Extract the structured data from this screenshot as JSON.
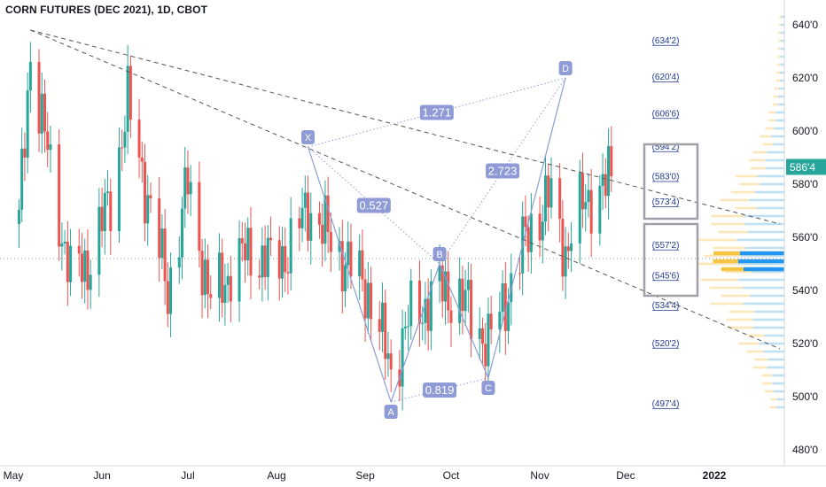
{
  "header": {
    "title": "CORN FUTURES (DEC 2021), 1D, CBOT"
  },
  "colors": {
    "up": "#26a69a",
    "down": "#ef5350",
    "pattern": "#8e9bd6",
    "label_bg": "#8e9bd6",
    "trend": "#555555",
    "vp_light": "#fbe7b8",
    "vp_blue": "#bfe0f3",
    "vp_poc_orange": "#f5c443",
    "vp_poc_blue": "#2196f3",
    "price_tag": "#26a69a"
  },
  "chart_data": {
    "type": "candlestick",
    "title": "CORN FUTURES (DEC 2021), 1D, CBOT",
    "y_axis": {
      "ticks": [
        "480'0",
        "500'0",
        "520'0",
        "540'0",
        "560'0",
        "580'0",
        "600'0",
        "620'0",
        "640'0"
      ],
      "range": [
        473,
        645
      ]
    },
    "x_axis": {
      "ticks": [
        "May",
        "Jun",
        "Jul",
        "Aug",
        "Sep",
        "Oct",
        "Nov",
        "Dec",
        "2022"
      ]
    },
    "last_price": "586'4",
    "fib_levels": [
      "634'2",
      "620'4",
      "606'6",
      "594'2",
      "583'0",
      "573'4",
      "557'2",
      "545'6",
      "534'4",
      "520'2",
      "497'4"
    ],
    "harmonic": {
      "points": [
        {
          "label": "X",
          "x": "2021-08-12",
          "y": 594
        },
        {
          "label": "A",
          "x": "2021-09-10",
          "y": 498
        },
        {
          "label": "B",
          "x": "2021-09-27",
          "y": 550
        },
        {
          "label": "C",
          "x": "2021-10-14",
          "y": 507
        },
        {
          "label": "D",
          "x": "2021-11-10",
          "y": 620
        }
      ],
      "ratios": [
        "1.271",
        "0.527",
        "2.723",
        "0.819"
      ]
    },
    "trendlines": [
      {
        "from": {
          "x": "2021-05-07",
          "y": 638
        },
        "to": {
          "x": "2022-01-24",
          "y": 565
        }
      },
      {
        "from": {
          "x": "2021-05-07",
          "y": 638
        },
        "to": {
          "x": "2022-01-24",
          "y": 518
        }
      }
    ],
    "candles_keypoints": [
      {
        "date": "2021-05-03",
        "close": 565
      },
      {
        "date": "2021-05-07",
        "close": 630
      },
      {
        "date": "2021-05-14",
        "close": 585
      },
      {
        "date": "2021-05-21",
        "close": 545
      },
      {
        "date": "2021-05-28",
        "close": 552
      },
      {
        "date": "2021-06-04",
        "close": 575
      },
      {
        "date": "2021-06-10",
        "close": 610
      },
      {
        "date": "2021-06-17",
        "close": 575
      },
      {
        "date": "2021-06-24",
        "close": 540
      },
      {
        "date": "2021-07-01",
        "close": 580
      },
      {
        "date": "2021-07-09",
        "close": 535
      },
      {
        "date": "2021-07-16",
        "close": 548
      },
      {
        "date": "2021-07-23",
        "close": 555
      },
      {
        "date": "2021-07-30",
        "close": 550
      },
      {
        "date": "2021-08-06",
        "close": 556
      },
      {
        "date": "2021-08-12",
        "close": 572
      },
      {
        "date": "2021-08-19",
        "close": 560
      },
      {
        "date": "2021-08-26",
        "close": 550
      },
      {
        "date": "2021-09-02",
        "close": 540
      },
      {
        "date": "2021-09-10",
        "close": 510
      },
      {
        "date": "2021-09-17",
        "close": 530
      },
      {
        "date": "2021-09-27",
        "close": 540
      },
      {
        "date": "2021-10-04",
        "close": 538
      },
      {
        "date": "2021-10-14",
        "close": 520
      },
      {
        "date": "2021-10-21",
        "close": 540
      },
      {
        "date": "2021-10-29",
        "close": 565
      },
      {
        "date": "2021-11-05",
        "close": 575
      },
      {
        "date": "2021-11-10",
        "close": 555
      },
      {
        "date": "2021-11-17",
        "close": 575
      },
      {
        "date": "2021-11-24",
        "close": 578
      },
      {
        "date": "2021-11-26",
        "close": 586
      }
    ]
  }
}
